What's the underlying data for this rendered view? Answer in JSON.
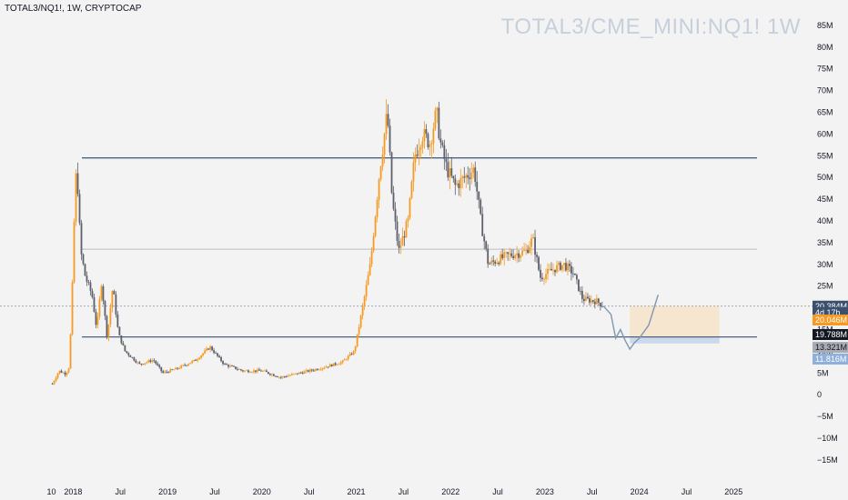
{
  "header": {
    "symbol_line": "TOTAL3/NQ1!, 1W, CRYPTOCAP",
    "watermark": "TOTAL3/CME_MINI:NQ1! 1W"
  },
  "colors": {
    "up": "#f59a23",
    "down": "#5d606b",
    "hline_strong": "#4a6382",
    "hline_light": "#b9bdc6",
    "projection": "#7f97b2",
    "zone_upper": "#f6e4cc",
    "zone_lower": "#c8d6ea",
    "tag_last": "#3b506d",
    "tag_orange": "#f59a23",
    "tag_black": "#131722",
    "tag_grey": "#a9abb3",
    "tag_blue": "#8fb0dc"
  },
  "chart_data": {
    "type": "candlestick",
    "timeframe": "1W",
    "x_tick_labels": [
      "10",
      "2018",
      "Jul",
      "2019",
      "Jul",
      "2020",
      "Jul",
      "2021",
      "Jul",
      "2022",
      "Jul",
      "2023",
      "Jul",
      "2024",
      "Jul",
      "2025"
    ],
    "y_tick_labels": [
      "85M",
      "80M",
      "75M",
      "70M",
      "65M",
      "60M",
      "55M",
      "50M",
      "45M",
      "40M",
      "35M",
      "30M",
      "25M",
      "20M",
      "15M",
      "10M",
      "5M",
      "0",
      "−5M",
      "−10M",
      "−15M"
    ],
    "y_range_millions": [
      -15,
      85
    ],
    "price_path_millions": [
      [
        2017.78,
        2.5
      ],
      [
        2017.85,
        5.5
      ],
      [
        2017.92,
        4.8
      ],
      [
        2017.96,
        6.5
      ],
      [
        2018.0,
        30
      ],
      [
        2018.02,
        48
      ],
      [
        2018.04,
        52
      ],
      [
        2018.08,
        33
      ],
      [
        2018.13,
        27
      ],
      [
        2018.2,
        23
      ],
      [
        2018.25,
        15
      ],
      [
        2018.3,
        26
      ],
      [
        2018.36,
        13
      ],
      [
        2018.42,
        25
      ],
      [
        2018.48,
        14
      ],
      [
        2018.55,
        10
      ],
      [
        2018.7,
        7
      ],
      [
        2018.85,
        8
      ],
      [
        2018.95,
        5
      ],
      [
        2019.1,
        6
      ],
      [
        2019.3,
        8
      ],
      [
        2019.45,
        11
      ],
      [
        2019.6,
        7
      ],
      [
        2019.8,
        5.5
      ],
      [
        2020.0,
        5.5
      ],
      [
        2020.2,
        4
      ],
      [
        2020.4,
        5
      ],
      [
        2020.6,
        6
      ],
      [
        2020.85,
        7.5
      ],
      [
        2020.98,
        10
      ],
      [
        2021.05,
        18
      ],
      [
        2021.15,
        30
      ],
      [
        2021.25,
        52
      ],
      [
        2021.33,
        65
      ],
      [
        2021.38,
        45
      ],
      [
        2021.45,
        33
      ],
      [
        2021.55,
        40
      ],
      [
        2021.62,
        55
      ],
      [
        2021.7,
        60
      ],
      [
        2021.78,
        58
      ],
      [
        2021.85,
        65
      ],
      [
        2021.9,
        57
      ],
      [
        2021.96,
        52
      ],
      [
        2022.05,
        48
      ],
      [
        2022.15,
        50
      ],
      [
        2022.25,
        52
      ],
      [
        2022.32,
        40
      ],
      [
        2022.4,
        30
      ],
      [
        2022.6,
        32
      ],
      [
        2022.8,
        33
      ],
      [
        2022.87,
        36
      ],
      [
        2022.95,
        27
      ],
      [
        2023.1,
        29
      ],
      [
        2023.2,
        30
      ],
      [
        2023.3,
        28
      ],
      [
        2023.4,
        22
      ],
      [
        2023.55,
        21.5
      ],
      [
        2023.62,
        20.4
      ]
    ],
    "projection_path_millions": [
      [
        2023.62,
        20.4
      ],
      [
        2023.7,
        18.5
      ],
      [
        2023.75,
        13
      ],
      [
        2023.8,
        15
      ],
      [
        2023.85,
        12.5
      ],
      [
        2023.9,
        10.5
      ],
      [
        2023.95,
        12
      ],
      [
        2024.0,
        13
      ],
      [
        2024.1,
        16
      ],
      [
        2024.2,
        23
      ]
    ],
    "horizontal_levels_millions": [
      {
        "value": 54.5,
        "style": "strong"
      },
      {
        "value": 33.5,
        "style": "light"
      },
      {
        "value": 13.3,
        "style": "strong"
      }
    ],
    "zones_millions": [
      {
        "from_x": 2023.9,
        "to_x": 2024.85,
        "low": 13.3,
        "high": 20.4,
        "style": "upper"
      },
      {
        "from_x": 2023.9,
        "to_x": 2024.85,
        "low": 11.8,
        "high": 13.3,
        "style": "lower"
      }
    ],
    "price_tags": [
      {
        "label": "20.384M",
        "value": 20.384,
        "style": "tag_last"
      },
      {
        "label": "4d 17h",
        "value": 18.9,
        "style": "tag_last"
      },
      {
        "label": "20.046M",
        "value": 17.2,
        "style": "tag_orange"
      },
      {
        "label": "19.788M",
        "value": 13.85,
        "style": "tag_black"
      },
      {
        "label": "13.321M",
        "value": 10.9,
        "style": "tag_grey"
      },
      {
        "label": "11.816M",
        "value": 8.2,
        "style": "tag_blue"
      }
    ],
    "last_price_millions": 20.384
  }
}
